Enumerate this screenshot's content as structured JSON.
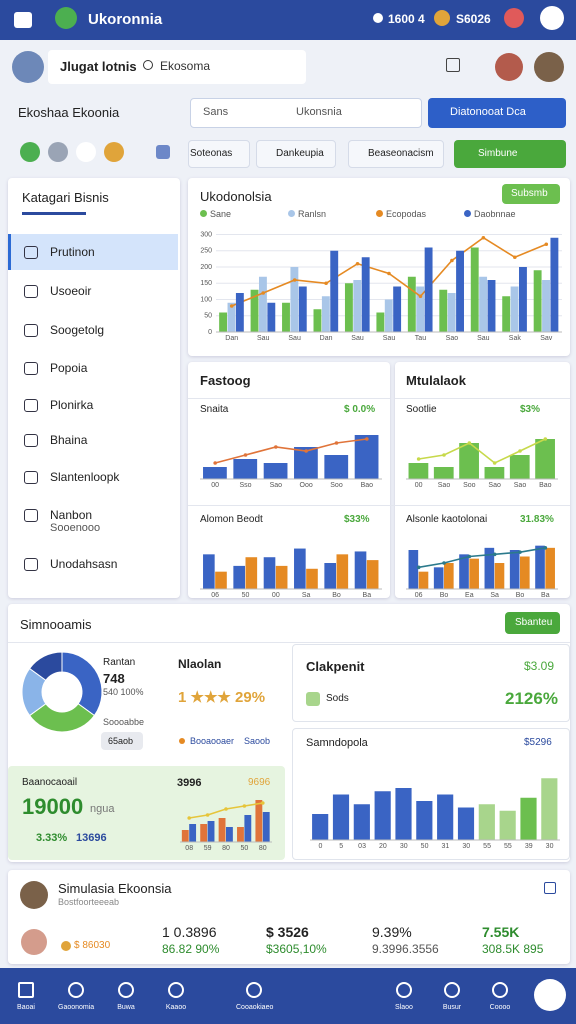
{
  "top_bar": {
    "app_name": "Ukoronnia",
    "stat_1": "1600 4",
    "stat_2": "S6026"
  },
  "header": {
    "user_name": "Jlugat lotnis",
    "search": "Ekosoma"
  },
  "sidebar": {
    "title": "Ekoshaa Ekoonia",
    "menu_title": "Katagari Bisnis",
    "items": [
      "Prutinon",
      "Usoeoir",
      "Soogetolg",
      "Popoia",
      "Plonirka",
      "Bhaina",
      "Slantenloopk",
      "Nanbon",
      "Unodahsasn"
    ],
    "item_sub": "Sooenooo"
  },
  "toolbar": {
    "tabs": [
      "Sans",
      "Ukonsnia"
    ],
    "action": "Diatonooat Dca",
    "filters": [
      "Soteonas",
      "Dankeupia",
      "Beaseonacism"
    ],
    "dropdown": "Simbune"
  },
  "main_chart": {
    "type": "bar",
    "title": "Ukodonolsia",
    "badge": "Subsmb",
    "categories": [
      "Dan",
      "Sau",
      "Sau",
      "Dan",
      "Sau",
      "Sau",
      "Tau",
      "Sao",
      "Sau",
      "Sak",
      "Sav"
    ],
    "series": [
      {
        "name": "Sane",
        "type": "bar",
        "color": "#6cbf4f",
        "values": [
          60,
          130,
          90,
          70,
          150,
          60,
          170,
          130,
          260,
          110,
          190
        ]
      },
      {
        "name": "Ranlsn",
        "type": "bar",
        "color": "#a9c6e8",
        "values": [
          90,
          170,
          200,
          110,
          160,
          100,
          140,
          120,
          170,
          140,
          160
        ]
      },
      {
        "name": "Ecopodas",
        "type": "line",
        "color": "#e58a23",
        "values": [
          80,
          120,
          160,
          150,
          210,
          180,
          110,
          220,
          290,
          230,
          270
        ]
      },
      {
        "name": "Daobnnae",
        "type": "bar",
        "color": "#3a64c4",
        "values": [
          120,
          90,
          140,
          250,
          230,
          140,
          260,
          250,
          160,
          200,
          290
        ]
      }
    ],
    "ylim": [
      0,
      320
    ],
    "yticks": [
      0,
      50,
      100,
      150,
      200,
      250,
      300
    ]
  },
  "cards": {
    "left_title": "Fastoog",
    "right_title": "Mtulalaok"
  },
  "mini_charts": [
    {
      "type": "bar",
      "title": "Snaita",
      "value": "$ 0.0%",
      "categories": [
        "00",
        "Sso",
        "Sao",
        "Ooo",
        "Soo",
        "Bao"
      ],
      "series": [
        {
          "type": "bar",
          "color": "#3a64c4",
          "values": [
            30,
            50,
            40,
            80,
            60,
            110
          ]
        },
        {
          "type": "line",
          "color": "#e0743a",
          "values": [
            40,
            60,
            80,
            70,
            90,
            100
          ]
        }
      ],
      "ylim": [
        0,
        130
      ]
    },
    {
      "type": "bar",
      "title": "Sootlie",
      "value": "$3%",
      "categories": [
        "00",
        "Sao",
        "Soo",
        "Sao",
        "Sao",
        "Bao"
      ],
      "series": [
        {
          "type": "bar",
          "color": "#6cbf4f",
          "values": [
            40,
            30,
            90,
            30,
            60,
            100
          ]
        },
        {
          "type": "line",
          "color": "#c7d94a",
          "values": [
            50,
            60,
            90,
            40,
            70,
            100
          ]
        }
      ],
      "ylim": [
        0,
        130
      ]
    },
    {
      "type": "bar",
      "title": "Alomon Beodt",
      "value": "$33%",
      "categories": [
        "06",
        "50",
        "00",
        "Sa",
        "Bo",
        "Ba"
      ],
      "series": [
        {
          "type": "bar",
          "color": "#3a64c4",
          "values": [
            60,
            40,
            55,
            70,
            45,
            65
          ]
        },
        {
          "type": "bar",
          "color": "#e58a23",
          "values": [
            30,
            55,
            40,
            35,
            60,
            50
          ]
        }
      ],
      "ylim": [
        0,
        90
      ]
    },
    {
      "type": "bar",
      "title": "Alsonle kaotolonai",
      "value": "31.83%",
      "categories": [
        "06",
        "Bo",
        "Ea",
        "Sa",
        "Bo",
        "Ba"
      ],
      "series": [
        {
          "type": "bar",
          "color": "#3a64c4",
          "values": [
            90,
            50,
            80,
            95,
            90,
            100
          ]
        },
        {
          "type": "bar",
          "color": "#e58a23",
          "values": [
            40,
            60,
            70,
            60,
            75,
            95
          ]
        },
        {
          "type": "line",
          "color": "#2b7a8c",
          "values": [
            50,
            60,
            75,
            80,
            85,
            95
          ]
        }
      ],
      "ylim": [
        0,
        120
      ]
    }
  ],
  "summary": {
    "title": "Simnooamis",
    "button": "Sbanteu",
    "donut": {
      "type": "pie",
      "values": [
        35,
        30,
        20,
        15
      ],
      "colors": [
        "#3a64c4",
        "#6cbf4f",
        "#8ab4e8",
        "#2b4a9e"
      ]
    },
    "legend_title": "Rantan",
    "legend_value": "748",
    "legend_sub": "540 100%",
    "legend_note": "Soooabbe",
    "legend_tag": "65aob",
    "rating_title": "Nlaolan",
    "rating": "1 ★★★ 29%",
    "legend_items": [
      "Booaooaer",
      "Saoob"
    ],
    "highlight": {
      "title": "Baanocaoail",
      "value": "19000",
      "unit": "ngua",
      "change": "3.33%",
      "sub": "13696",
      "label_left": "3996",
      "label_right": "9696",
      "chart": {
        "type": "bar",
        "categories": [
          "08",
          "59",
          "80",
          "50",
          "80"
        ],
        "series": [
          {
            "type": "bar",
            "color": "#e0743a",
            "values": [
              20,
              30,
              40,
              25,
              70
            ]
          },
          {
            "type": "bar",
            "color": "#3a64c4",
            "values": [
              30,
              35,
              25,
              45,
              50
            ]
          },
          {
            "type": "line",
            "color": "#e6c53a",
            "values": [
              40,
              45,
              55,
              60,
              65
            ]
          }
        ],
        "ylim": [
          0,
          80
        ]
      }
    },
    "kpi": {
      "title": "Clakpenit",
      "value": "$3.09",
      "label": "Sods",
      "pct": "2126%"
    },
    "bar_chart": {
      "type": "bar",
      "title": "Samndopola",
      "value": "$5296",
      "categories": [
        "0",
        "5",
        "03",
        "20",
        "30",
        "50",
        "31",
        "30",
        "55",
        "55",
        "39",
        "30"
      ],
      "series": [
        {
          "type": "bar",
          "color": "#3a64c4",
          "values": [
            40,
            70,
            55,
            75,
            80,
            60,
            70,
            50,
            55,
            45,
            65,
            95
          ],
          "colors": [
            "#3a64c4",
            "#3a64c4",
            "#3a64c4",
            "#3a64c4",
            "#3a64c4",
            "#3a64c4",
            "#3a64c4",
            "#3a64c4",
            "#a8d58c",
            "#a8d58c",
            "#6cbf4f",
            "#a8d58c"
          ]
        }
      ],
      "ylim": [
        0,
        120
      ]
    }
  },
  "profile": {
    "title": "Simulasia Ekoonsia",
    "subtitle": "Bostfoorteeeab",
    "tag": "$ 86030",
    "stats": [
      {
        "value": "1 0.3896",
        "sub": "86.82 90%"
      },
      {
        "value": "$ 3526",
        "sub": "$3605,10%"
      },
      {
        "value": "9.39%",
        "sub": "9.3996.3556"
      },
      {
        "value": "7.55K",
        "sub": "308.5K 895"
      }
    ]
  },
  "nav": [
    "Baoai",
    "Gaoonomia",
    "Buwa",
    "Kaaoo",
    "Cooaokiaeo",
    "Slaoo",
    "Busur",
    "Coooo"
  ]
}
